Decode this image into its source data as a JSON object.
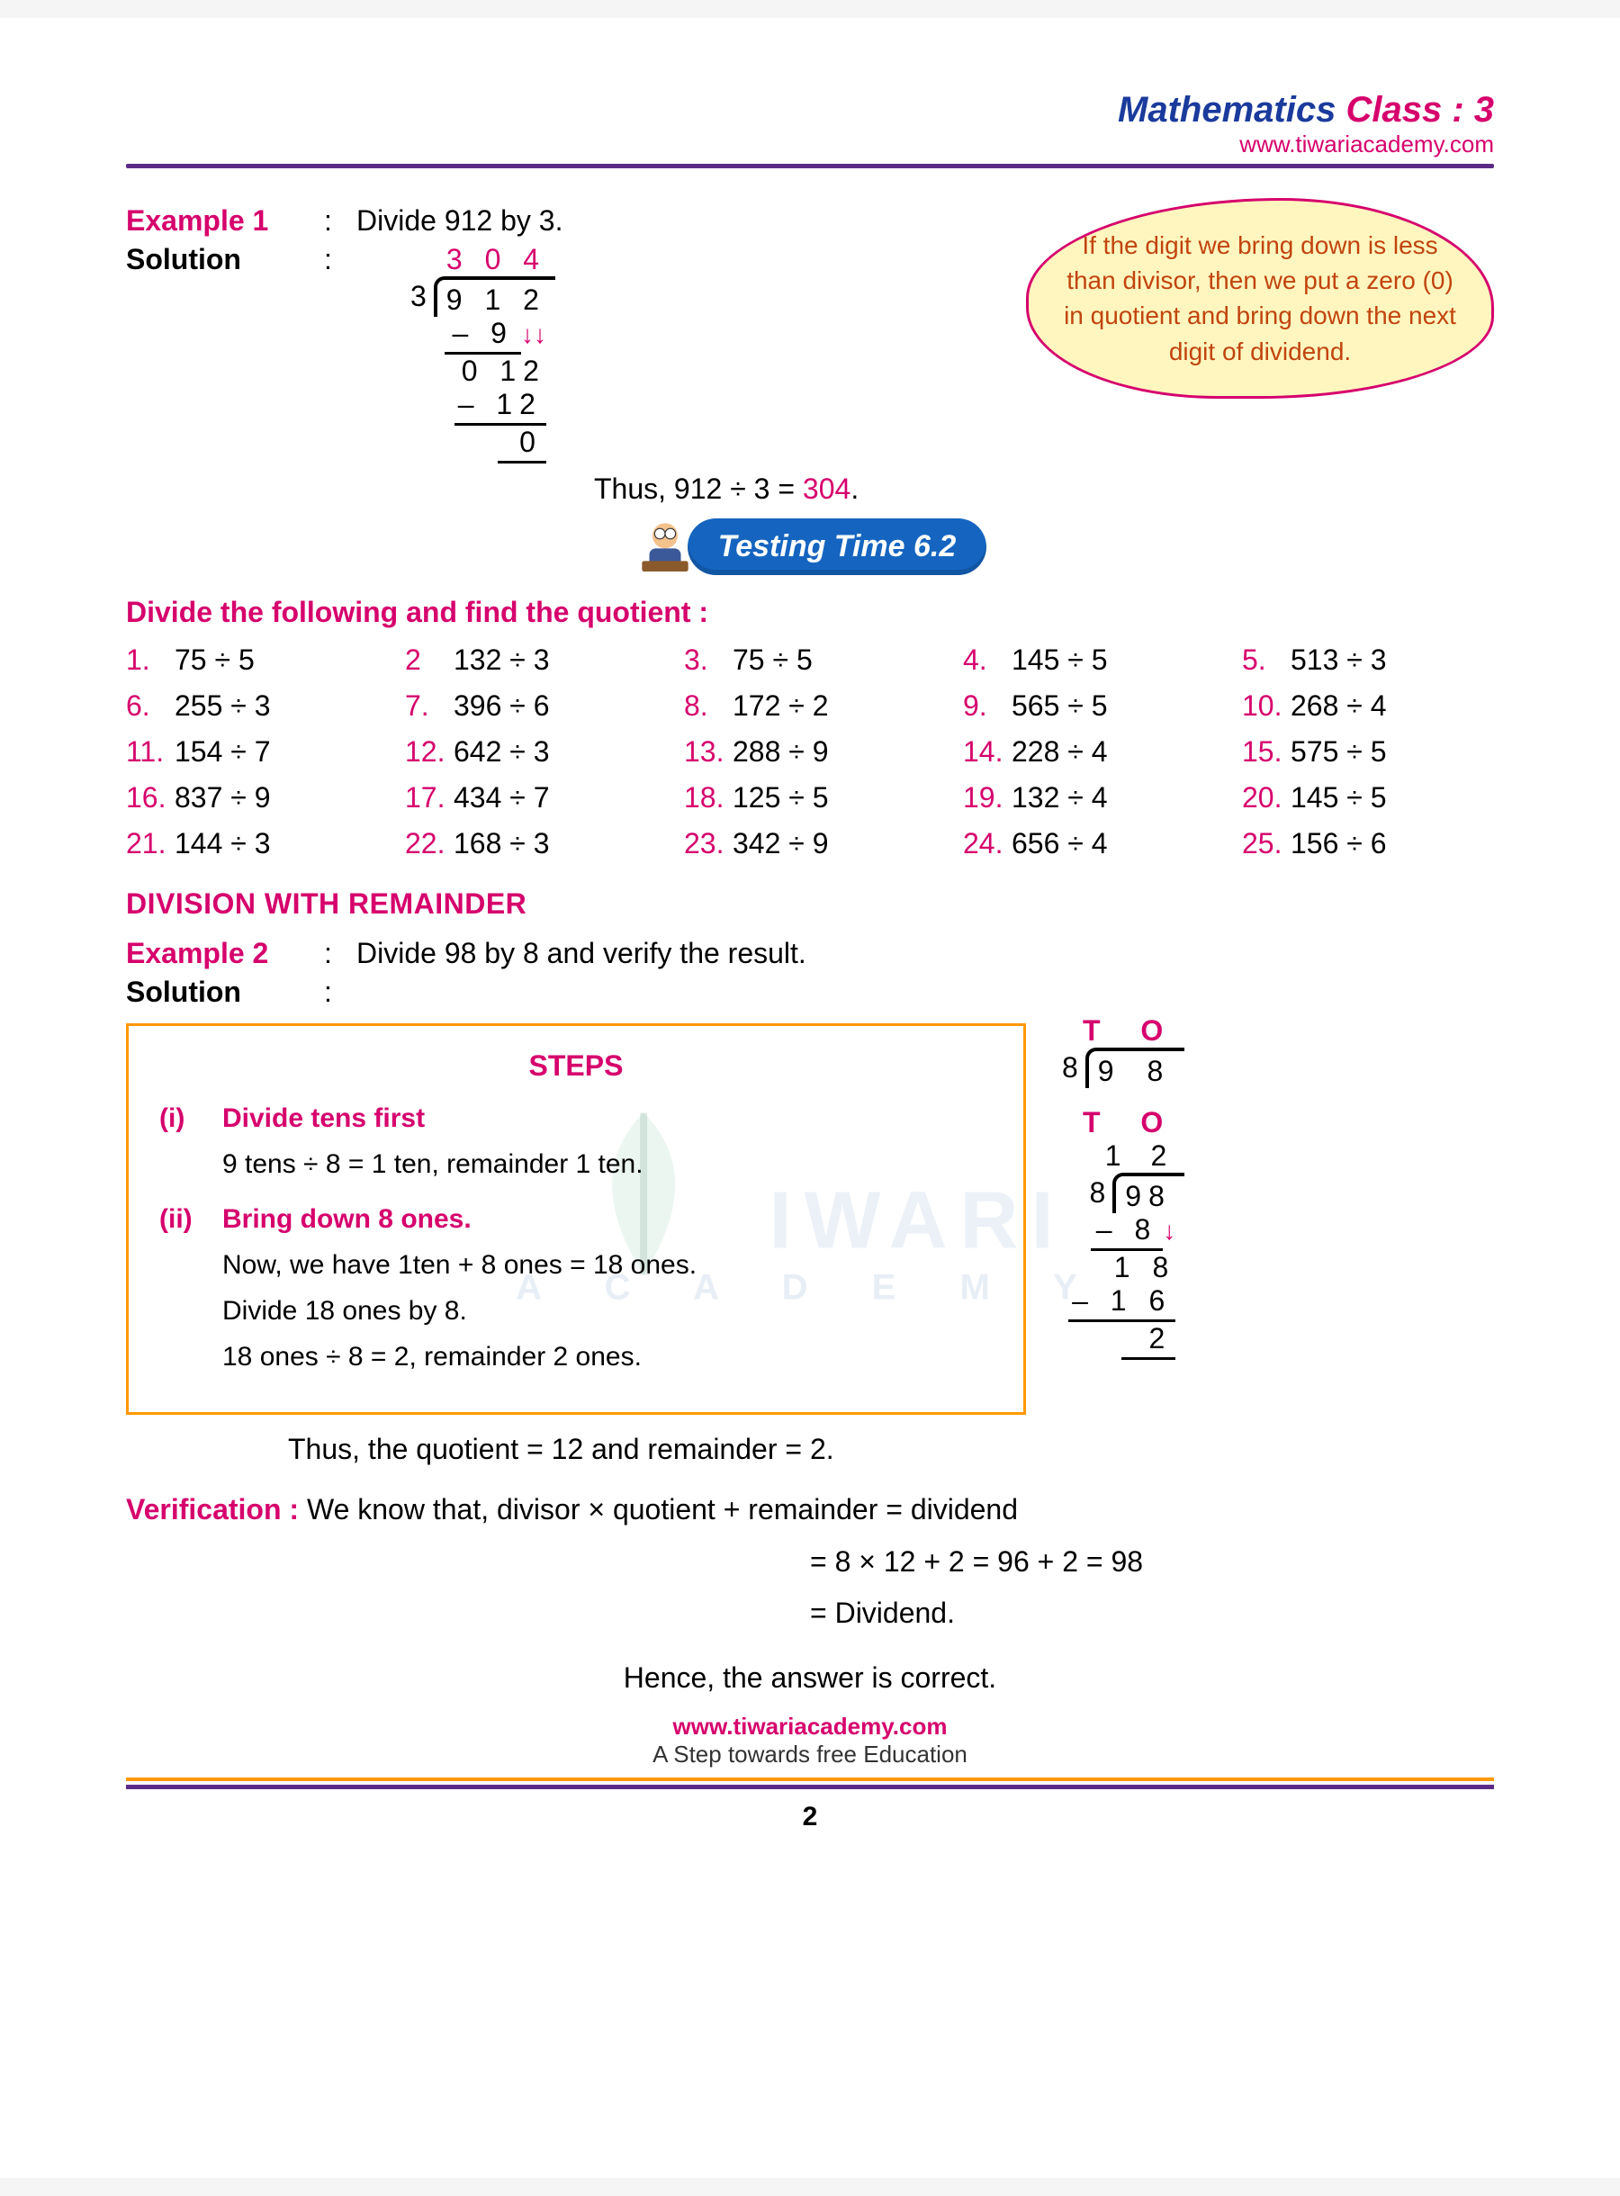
{
  "header": {
    "title_prefix": "Mathematics ",
    "title_suffix": "Class : 3",
    "title_prefix_color": "#1a3a9c",
    "title_suffix_color": "#d6006c",
    "link": "www.tiwariacademy.com"
  },
  "example1": {
    "label": "Example 1",
    "colon": ":",
    "question": "Divide 912 by 3.",
    "solution_label": "Solution",
    "quotient": "3 0 4",
    "quotient_color": "#d6006c",
    "divisor": "3",
    "dividend": "9 1 2",
    "step1": "– 9",
    "step2": "0 12",
    "step3": "–   12",
    "step4": "0",
    "thus_prefix": "Thus, 912 ÷ 3 = ",
    "thus_answer": "304",
    "thus_answer_color": "#d6006c",
    "thus_suffix": "."
  },
  "callout": {
    "text": "If the digit we bring down is less than divisor, then we put a zero (0) in quotient and bring down the next digit of dividend.",
    "bg_color": "#fff6bf",
    "border_color": "#d6006c",
    "text_color": "#c1440e"
  },
  "banner": {
    "text": "Testing Time 6.2",
    "bg_color": "#1565c0"
  },
  "exercise": {
    "instruction": "Divide the following and find the quotient :",
    "items": [
      {
        "n": "1.",
        "q": "75 ÷ 5"
      },
      {
        "n": "2",
        "q": "132 ÷ 3"
      },
      {
        "n": "3.",
        "q": "75 ÷ 5"
      },
      {
        "n": "4.",
        "q": "145 ÷ 5"
      },
      {
        "n": "5.",
        "q": "513 ÷ 3"
      },
      {
        "n": "6.",
        "q": "255 ÷ 3"
      },
      {
        "n": "7.",
        "q": "396 ÷ 6"
      },
      {
        "n": "8.",
        "q": "172 ÷ 2"
      },
      {
        "n": "9.",
        "q": "565 ÷ 5"
      },
      {
        "n": "10.",
        "q": "268 ÷ 4"
      },
      {
        "n": "11.",
        "q": "154 ÷ 7"
      },
      {
        "n": "12.",
        "q": "642 ÷ 3"
      },
      {
        "n": "13.",
        "q": "288 ÷ 9"
      },
      {
        "n": "14.",
        "q": "228 ÷ 4"
      },
      {
        "n": "15.",
        "q": "575 ÷ 5"
      },
      {
        "n": "16.",
        "q": "837 ÷ 9"
      },
      {
        "n": "17.",
        "q": "434 ÷ 7"
      },
      {
        "n": "18.",
        "q": "125 ÷ 5"
      },
      {
        "n": "19.",
        "q": "132 ÷ 4"
      },
      {
        "n": "20.",
        "q": "145 ÷ 5"
      },
      {
        "n": "21.",
        "q": "144 ÷ 3"
      },
      {
        "n": "22.",
        "q": "168 ÷ 3"
      },
      {
        "n": "23.",
        "q": "342 ÷ 9"
      },
      {
        "n": "24.",
        "q": "656 ÷ 4"
      },
      {
        "n": "25.",
        "q": "156 ÷ 6"
      }
    ]
  },
  "section2_title": "DIVISION WITH REMAINDER",
  "example2": {
    "label": "Example 2",
    "colon": ":",
    "question": "Divide 98 by 8 and verify the result.",
    "solution_label": "Solution"
  },
  "steps": {
    "title": "STEPS",
    "s1_num": "(i)",
    "s1_head": "Divide tens first",
    "s1_body": "9 tens ÷ 8 = 1 ten, remainder 1 ten.",
    "s2_num": "(ii)",
    "s2_head": "Bring down 8 ones.",
    "s2_b1": "Now, we have 1ten  + 8 ones    = 18 ones.",
    "s2_b2": "Divide 18 ones by 8.",
    "s2_b3": "18 ones ÷ 8 = 2, remainder 2 ones."
  },
  "sidework": {
    "to": "T  O",
    "d1_divisor": "8",
    "d1_dividend": "9  8",
    "d2_quotient": "1 2",
    "d2_divisor": "8",
    "d2_dividend": "98",
    "d2_s1": "– 8",
    "d2_s2": "1 8",
    "d2_s3": "– 1 6",
    "d2_s4": "2"
  },
  "conclusion": "Thus, the quotient = 12 and remainder = 2.",
  "verification": {
    "label": "Verification : ",
    "line1": "We know that, divisor × quotient + remainder =  dividend",
    "line2": "=  8 × 12 + 2 = 96 + 2 = 98",
    "line3": "=  Dividend.",
    "final": "Hence, the answer is correct."
  },
  "footer": {
    "link": "www.tiwariacademy.com",
    "sub": "A Step towards free Education",
    "page": "2"
  },
  "watermark": {
    "main": "IWARI",
    "sub": "A  C  A  D  E  M  Y"
  }
}
